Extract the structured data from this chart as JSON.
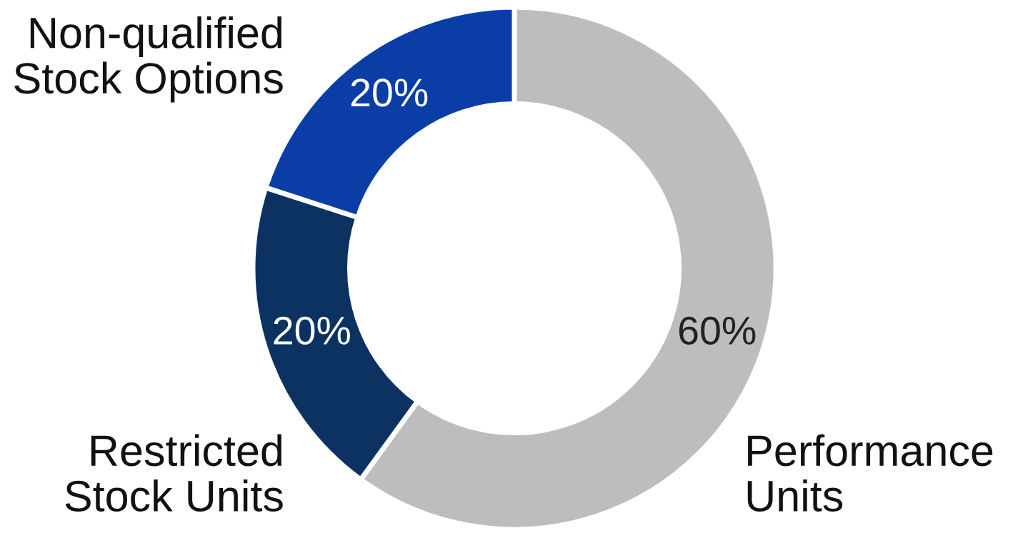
{
  "chart_data": {
    "type": "donut",
    "categories": [
      "Performance Units",
      "Restricted Stock Units",
      "Non-qualified Stock Options"
    ],
    "values": [
      60,
      20,
      20
    ],
    "colors": [
      "#bcbdbf",
      "#0b3260",
      "#0a3ea6"
    ],
    "value_labels": [
      "60%",
      "20%",
      "20%"
    ],
    "legend": false
  }
}
